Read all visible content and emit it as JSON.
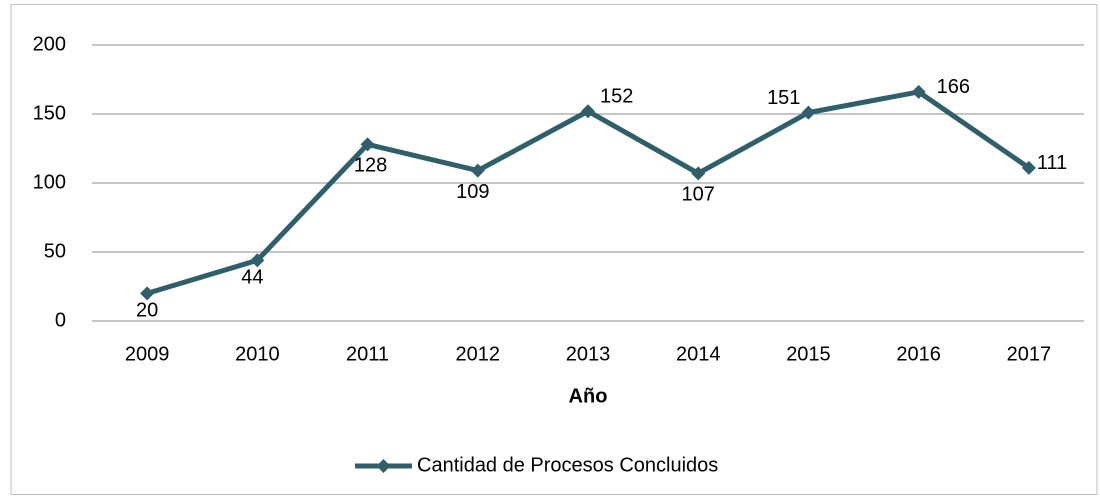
{
  "chart_data": {
    "type": "line",
    "x_label": "Año",
    "categories": [
      "2009",
      "2010",
      "2011",
      "2012",
      "2013",
      "2014",
      "2015",
      "2016",
      "2017"
    ],
    "series": [
      {
        "name": "Cantidad de Procesos Concluidos",
        "color": "#2e5f6b",
        "values": [
          20,
          44,
          128,
          109,
          152,
          107,
          151,
          166,
          111
        ]
      }
    ],
    "ylim": [
      0,
      200
    ],
    "yticks": [
      0,
      50,
      100,
      150,
      200
    ],
    "grid": true,
    "legend": "bottom"
  }
}
